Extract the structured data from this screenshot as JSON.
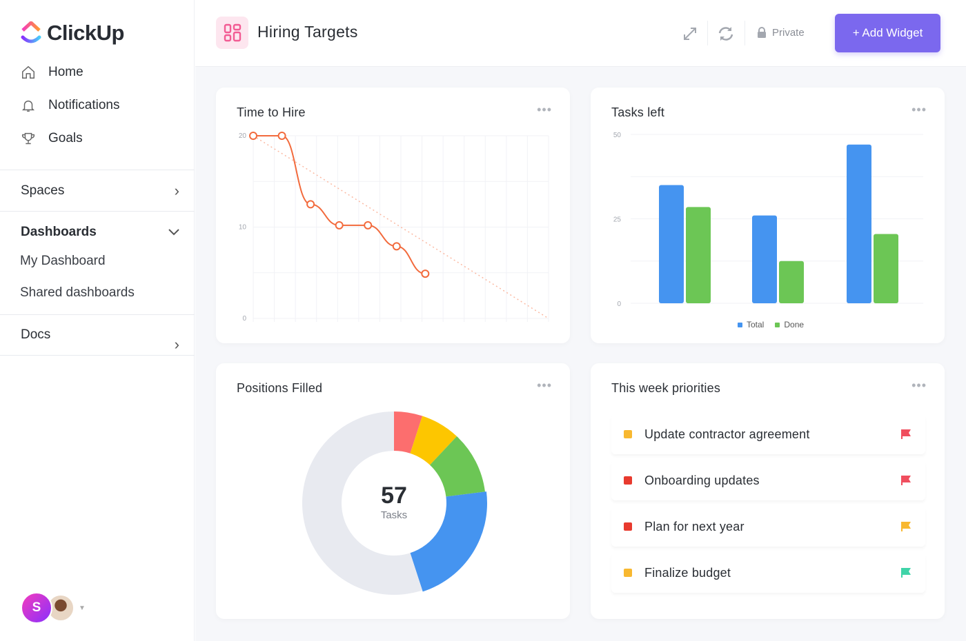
{
  "brand": {
    "name": "ClickUp"
  },
  "sidebar": {
    "items": [
      {
        "label": "Home",
        "icon": "home-icon"
      },
      {
        "label": "Notifications",
        "icon": "bell-icon"
      },
      {
        "label": "Goals",
        "icon": "trophy-icon"
      }
    ],
    "spaces": "Spaces",
    "dashboards": "Dashboards",
    "dashboard_items": [
      "My Dashboard",
      "Shared dashboards"
    ],
    "docs": "Docs",
    "avatar_initial": "S"
  },
  "header": {
    "title": "Hiring Targets",
    "private_label": "Private",
    "add_widget": "+ Add Widget",
    "accent": "#7b68ee"
  },
  "widgets": {
    "time_to_hire": {
      "title": "Time to Hire",
      "menu": "•••"
    },
    "tasks_left": {
      "title": "Tasks left",
      "menu": "•••"
    },
    "positions_filled": {
      "title": "Positions Filled",
      "menu": "•••",
      "center_value": "57",
      "center_label": "Tasks"
    },
    "priorities": {
      "title": "This week priorities",
      "menu": "•••",
      "items": [
        {
          "label": "Update contractor agreement",
          "status_color": "#f8b830",
          "flag_color": "#f04e5e"
        },
        {
          "label": "Onboarding updates",
          "status_color": "#e83a2e",
          "flag_color": "#f04e5e"
        },
        {
          "label": "Plan for next year",
          "status_color": "#e83a2e",
          "flag_color": "#f8b830"
        },
        {
          "label": "Finalize budget",
          "status_color": "#f8b830",
          "flag_color": "#3fd4a8"
        }
      ]
    }
  },
  "chart_data": [
    {
      "type": "line",
      "title": "Time to Hire",
      "x": [
        0,
        1,
        2,
        3,
        4,
        5,
        6
      ],
      "values": [
        20,
        20,
        12.5,
        10.2,
        10.2,
        7.9,
        4.9
      ],
      "trend": {
        "from": 20,
        "to": 0
      },
      "xlim": [
        0,
        10.3
      ],
      "ylim": [
        0,
        20
      ],
      "yticks": [
        "0",
        "10",
        "20"
      ],
      "color": "#f26a3c",
      "grid": true
    },
    {
      "type": "bar",
      "title": "Tasks left",
      "categories": [
        "1",
        "2",
        "3"
      ],
      "series": [
        {
          "name": "Total",
          "values": [
            35,
            26,
            47
          ],
          "color": "#4594f0"
        },
        {
          "name": "Done",
          "values": [
            28.5,
            12.5,
            20.5
          ],
          "color": "#6cc655"
        }
      ],
      "ylim": [
        0,
        50
      ],
      "yticks": [
        "0",
        "25",
        "50"
      ],
      "legend": "bottom",
      "grid": true
    },
    {
      "type": "pie",
      "title": "Positions Filled",
      "donut": true,
      "values": [
        5,
        7,
        11,
        22,
        55
      ],
      "colors": [
        "#fc6e6e",
        "#fdc600",
        "#6cc655",
        "#4594f0",
        "#e8eaf0"
      ]
    }
  ]
}
